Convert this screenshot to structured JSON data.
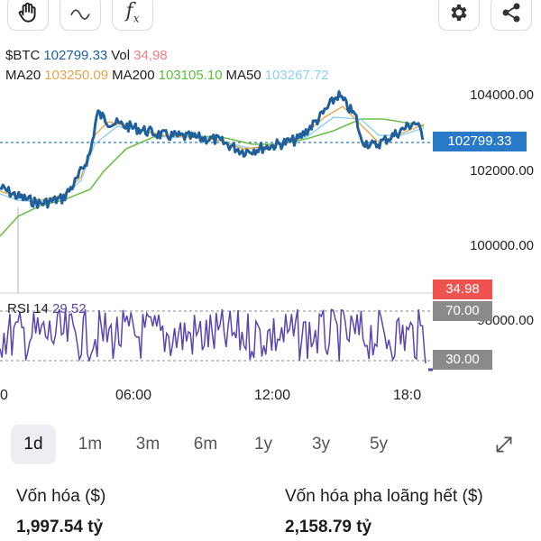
{
  "toolbar": {
    "left": [
      {
        "icon": "hand-icon"
      },
      {
        "icon": "wave-line-icon"
      },
      {
        "icon": "function-fx-icon",
        "glyph": "f",
        "sub": "x"
      }
    ],
    "right": [
      {
        "icon": "gear-icon"
      },
      {
        "icon": "share-icon"
      }
    ]
  },
  "legend": {
    "symbol": "$BTC",
    "price": "102799.33",
    "vol_label": "Vol",
    "vol_value": "34,98",
    "ma20_label": "MA20",
    "ma20_value": "103250.09",
    "ma200_label": "MA200",
    "ma200_value": "103105.10",
    "ma50_label": "MA50",
    "ma50_value": "103267.72"
  },
  "price_axis": [
    "104000.00",
    "102000.00",
    "100000.00",
    "98000.00"
  ],
  "current_price_tag": "102799.33",
  "vol_tag": "34.98",
  "rsi": {
    "label": "RSI 14",
    "value": "29.52",
    "upper_tag": "70.00",
    "lower_tag": "30.00"
  },
  "time_axis": [
    "06:00",
    "12:00",
    "18:0"
  ],
  "time_axis_partial": "0",
  "ranges": [
    "1d",
    "1m",
    "3m",
    "6m",
    "1y",
    "3y",
    "5y"
  ],
  "active_range": "1d",
  "metrics": {
    "market_cap_label": "Vốn hóa ($)",
    "market_cap_value": "1,997.54 tỷ",
    "fdv_label": "Vốn hóa pha loãng hết ($)",
    "fdv_value": "2,158.79 tỷ"
  },
  "colors": {
    "price_line": "#1f5f9c",
    "ma20": "#e8a54b",
    "ma200": "#6cc04a",
    "ma50": "#8fd0ef",
    "rsi_line": "#5b46b0",
    "current_price_tag_bg": "#2979c9",
    "vol_tag_bg": "#ef5350",
    "rsi_tag_bg": "#8a8a8a"
  }
}
